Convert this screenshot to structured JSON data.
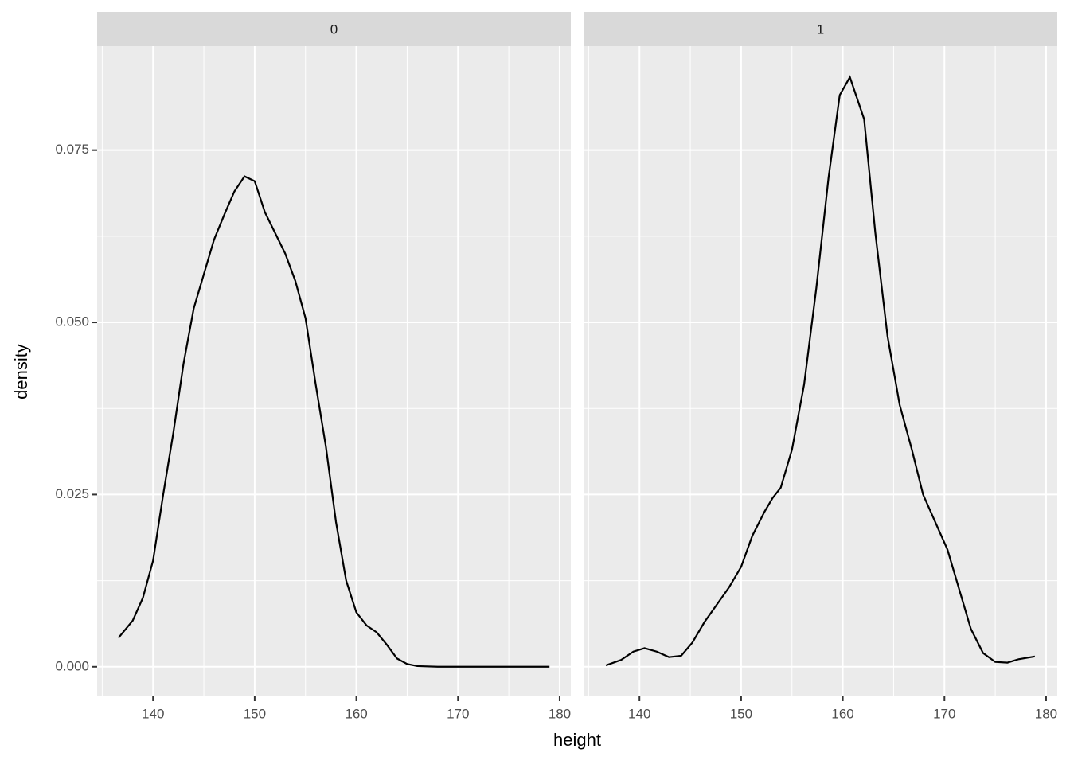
{
  "chart_data": {
    "type": "line",
    "xlabel": "height",
    "ylabel": "density",
    "xlim": [
      134.5,
      181.1
    ],
    "xticks": [
      140,
      150,
      160,
      170,
      180
    ],
    "ylim": [
      -0.0043,
      0.0901
    ],
    "yticks": [
      {
        "value": 0,
        "label": "0.000"
      },
      {
        "value": 0.025,
        "label": "0.025"
      },
      {
        "value": 0.05,
        "label": "0.050"
      },
      {
        "value": 0.075,
        "label": "0.075"
      }
    ],
    "grid": true,
    "color": "#000000",
    "facets": [
      {
        "title": "0",
        "x": [
          136.6,
          138,
          139,
          140,
          141,
          142,
          143,
          144,
          145,
          146,
          147,
          148,
          149,
          150,
          151,
          152,
          153,
          154,
          155,
          156,
          157,
          158,
          159,
          160,
          161,
          162,
          163,
          164,
          165,
          166,
          168,
          172,
          176,
          179
        ],
        "values": [
          0.0042,
          0.0067,
          0.01,
          0.0154,
          0.025,
          0.034,
          0.044,
          0.052,
          0.057,
          0.062,
          0.0656,
          0.069,
          0.0712,
          0.0705,
          0.066,
          0.063,
          0.06,
          0.056,
          0.0506,
          0.041,
          0.032,
          0.021,
          0.0125,
          0.0079,
          0.006,
          0.005,
          0.0032,
          0.0012,
          0.0004,
          0.0001,
          0,
          0,
          0,
          0
        ]
      },
      {
        "title": "1",
        "x": [
          136.7,
          138.2,
          139.4,
          140.5,
          141.7,
          142.9,
          144.1,
          145.2,
          146.4,
          147.6,
          148.8,
          150.0,
          151.1,
          152.3,
          153.1,
          153.9,
          155.0,
          156.2,
          157.4,
          158.6,
          159.7,
          160.7,
          162.1,
          163.2,
          164.4,
          165.6,
          166.8,
          167.9,
          169.1,
          170.3,
          171.5,
          172.6,
          173.8,
          175.0,
          176.2,
          177.3,
          178.9
        ],
        "values": [
          0.0002,
          0.001,
          0.0022,
          0.0027,
          0.0022,
          0.0014,
          0.0016,
          0.0035,
          0.0065,
          0.009,
          0.0115,
          0.0145,
          0.019,
          0.0225,
          0.0245,
          0.026,
          0.0315,
          0.041,
          0.055,
          0.071,
          0.083,
          0.0856,
          0.0795,
          0.063,
          0.048,
          0.038,
          0.0315,
          0.025,
          0.021,
          0.017,
          0.011,
          0.0055,
          0.002,
          0.0007,
          0.0006,
          0.0011,
          0.0015
        ]
      }
    ]
  }
}
